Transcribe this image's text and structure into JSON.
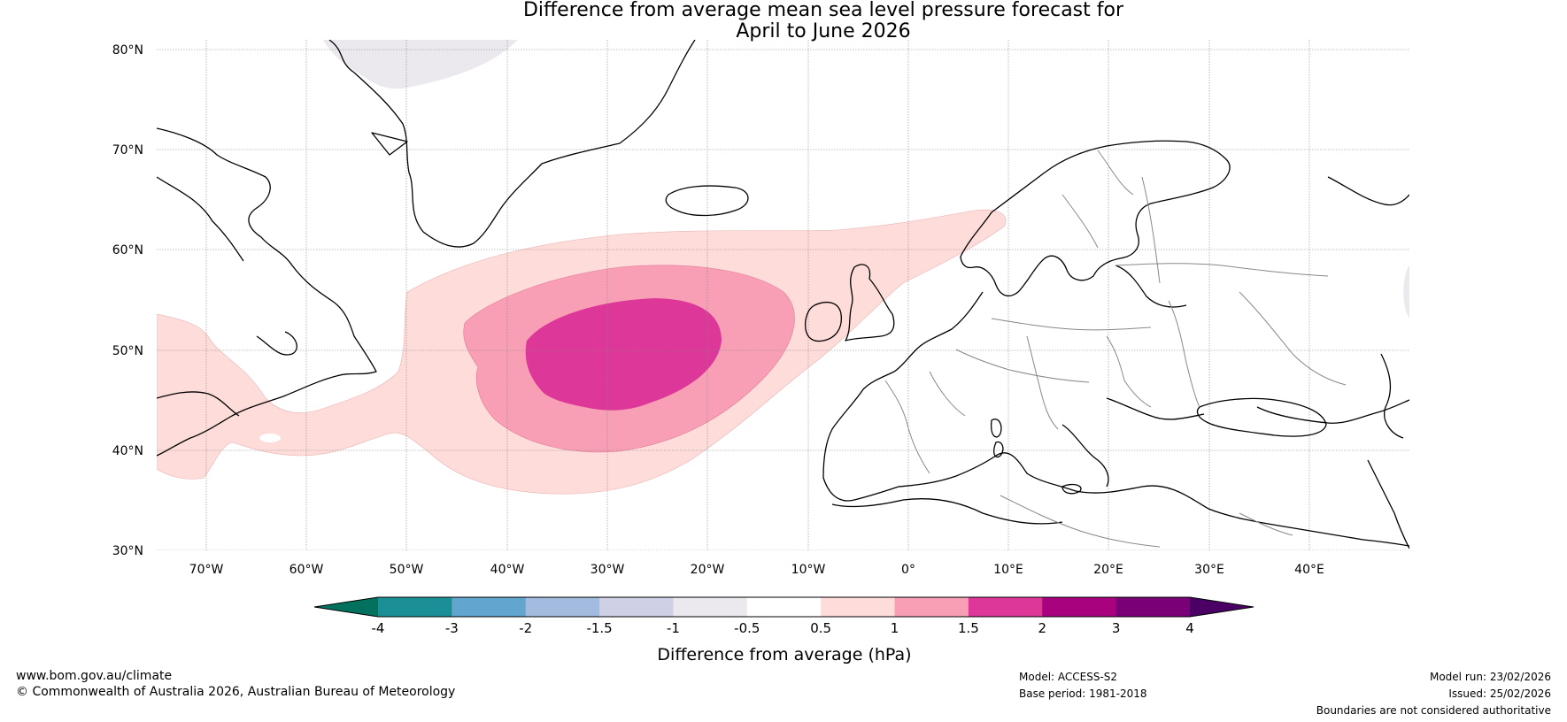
{
  "title": {
    "line1": "Difference from average mean sea level pressure forecast for",
    "line2": "April to June 2026"
  },
  "map": {
    "lat_labels": [
      "80°N",
      "70°N",
      "60°N",
      "50°N",
      "40°N",
      "30°N"
    ],
    "lon_labels": [
      "70°W",
      "60°W",
      "50°W",
      "40°W",
      "30°W",
      "20°W",
      "10°W",
      "0°",
      "10°E",
      "20°E",
      "30°E",
      "40°E"
    ],
    "lat_range": [
      30,
      81
    ],
    "lon_range": [
      -75,
      50
    ]
  },
  "colorbar": {
    "title": "Difference from average (hPa)",
    "labels": [
      "-4",
      "-3",
      "-2",
      "-1.5",
      "-1",
      "-0.5",
      "0.5",
      "1",
      "1.5",
      "2",
      "3",
      "4"
    ],
    "colors": [
      "#1a8f96",
      "#62a6cf",
      "#a3bbde",
      "#cfcfe6",
      "#ece9ee",
      "#ffffff",
      "#fedcda",
      "#f89fb5",
      "#dc3799",
      "#a8027f",
      "#7a0078"
    ],
    "under_color": "#02725e",
    "over_color": "#4b0066",
    "anomaly_colors": {
      "weak_positive": "#fedcda",
      "moderate_positive": "#f89fb5",
      "strong_positive": "#dc3799",
      "weak_negative": "#ece9ee"
    }
  },
  "footer": {
    "website": "www.bom.gov.au/climate",
    "copyright": "© Commonwealth of Australia 2026, Australian Bureau of Meteorology",
    "model": "Model: ACCESS-S2",
    "base_period": "Base period: 1981-2018",
    "model_run": "Model run: 23/02/2026",
    "issued": "Issued: 25/02/2026",
    "disclaimer": "Boundaries are not considered authoritative"
  }
}
